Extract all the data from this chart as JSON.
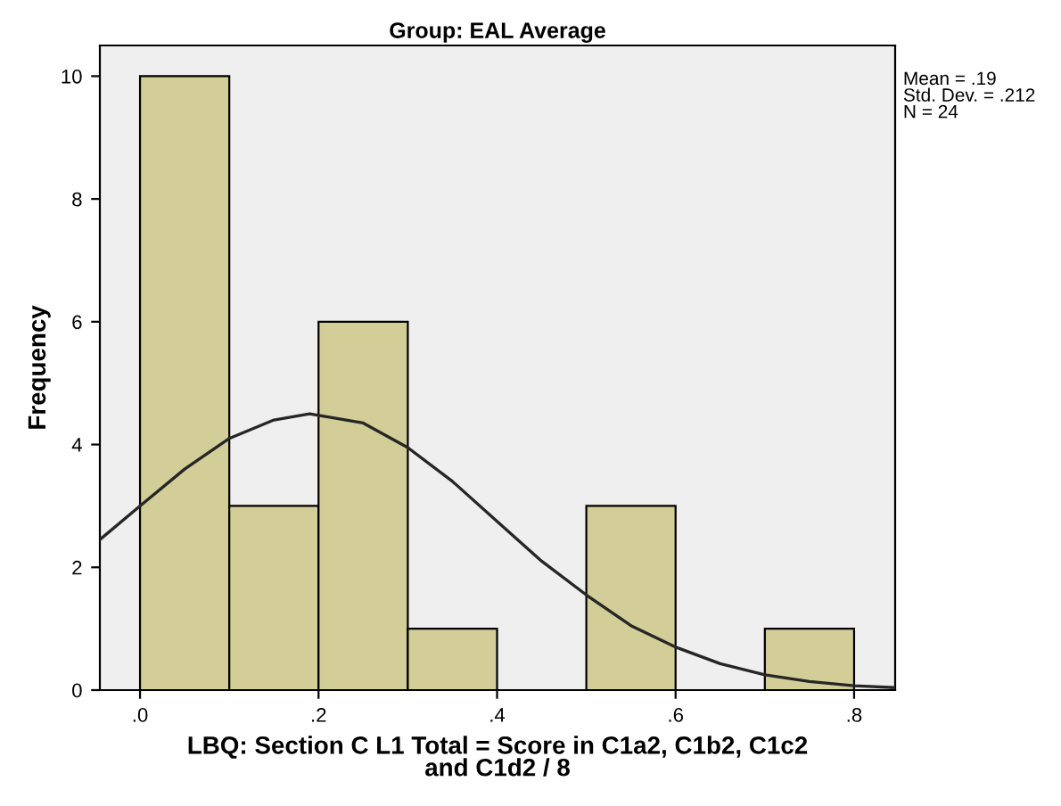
{
  "chart_data": {
    "type": "histogram",
    "title": "Group: EAL Average",
    "xlabel": "LBQ: Section C L1 Total = Score in C1a2, C1b2, C1c2\nand C1d2 / 8",
    "ylabel": "Frequency",
    "bins": [
      0,
      0.1,
      0.2,
      0.3,
      0.4,
      0.5,
      0.6,
      0.7,
      0.8
    ],
    "values": [
      10,
      3,
      6,
      1,
      0,
      3,
      0,
      1
    ],
    "color": "#d3ce97",
    "series": [
      {
        "type": "line",
        "color": "#262626",
        "x": [
          -0.045,
          0.0,
          0.05,
          0.1,
          0.15,
          0.19,
          0.25,
          0.3,
          0.35,
          0.4,
          0.45,
          0.5,
          0.55,
          0.6,
          0.65,
          0.7,
          0.75,
          0.8,
          0.846
        ],
        "values": [
          2.45,
          3.0,
          3.6,
          4.1,
          4.4,
          4.5,
          4.35,
          3.95,
          3.4,
          2.75,
          2.1,
          1.55,
          1.05,
          0.7,
          0.43,
          0.25,
          0.14,
          0.07,
          0.04
        ]
      }
    ],
    "xlim": [
      -0.045,
      0.846
    ],
    "ylim": [
      0,
      10.5
    ],
    "xticks": [
      {
        "value": 0,
        "label": ".0"
      },
      {
        "value": 0.2,
        "label": ".2"
      },
      {
        "value": 0.4,
        "label": ".4"
      },
      {
        "value": 0.6,
        "label": ".6"
      },
      {
        "value": 0.8,
        "label": ".8"
      }
    ],
    "yticks": [
      0,
      2,
      4,
      6,
      8,
      10
    ],
    "annotations": [
      "Mean = .19\nStd. Dev. = .212\nN = 24"
    ],
    "grid": false,
    "legend": false
  }
}
